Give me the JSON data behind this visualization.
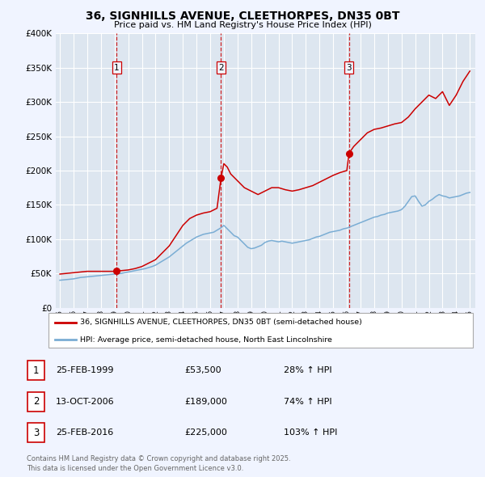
{
  "title": "36, SIGNHILLS AVENUE, CLEETHORPES, DN35 0BT",
  "subtitle": "Price paid vs. HM Land Registry's House Price Index (HPI)",
  "bg_color": "#f0f4ff",
  "plot_bg_color": "#dde6f0",
  "red_color": "#cc0000",
  "blue_color": "#7aadd4",
  "grid_color": "#ffffff",
  "dashed_color": "#cc0000",
  "ylim": [
    0,
    400000
  ],
  "yticks": [
    0,
    50000,
    100000,
    150000,
    200000,
    250000,
    300000,
    350000,
    400000
  ],
  "ytick_labels": [
    "£0",
    "£50K",
    "£100K",
    "£150K",
    "£200K",
    "£250K",
    "£300K",
    "£350K",
    "£400K"
  ],
  "sale_dates": [
    1999.15,
    2006.79,
    2016.15
  ],
  "sale_prices": [
    53500,
    189000,
    225000
  ],
  "sale_labels": [
    "1",
    "2",
    "3"
  ],
  "vline_dates": [
    1999.15,
    2006.79,
    2016.15
  ],
  "legend_red": "36, SIGNHILLS AVENUE, CLEETHORPES, DN35 0BT (semi-detached house)",
  "legend_blue": "HPI: Average price, semi-detached house, North East Lincolnshire",
  "table_entries": [
    {
      "num": "1",
      "date": "25-FEB-1999",
      "price": "£53,500",
      "hpi": "28% ↑ HPI"
    },
    {
      "num": "2",
      "date": "13-OCT-2006",
      "price": "£189,000",
      "hpi": "74% ↑ HPI"
    },
    {
      "num": "3",
      "date": "25-FEB-2016",
      "price": "£225,000",
      "hpi": "103% ↑ HPI"
    }
  ],
  "footnote": "Contains HM Land Registry data © Crown copyright and database right 2025.\nThis data is licensed under the Open Government Licence v3.0.",
  "hpi_years": [
    1995.0,
    1995.25,
    1995.5,
    1995.75,
    1996.0,
    1996.25,
    1996.5,
    1996.75,
    1997.0,
    1997.25,
    1997.5,
    1997.75,
    1998.0,
    1998.25,
    1998.5,
    1998.75,
    1999.0,
    1999.25,
    1999.5,
    1999.75,
    2000.0,
    2000.25,
    2000.5,
    2000.75,
    2001.0,
    2001.25,
    2001.5,
    2001.75,
    2002.0,
    2002.25,
    2002.5,
    2002.75,
    2003.0,
    2003.25,
    2003.5,
    2003.75,
    2004.0,
    2004.25,
    2004.5,
    2004.75,
    2005.0,
    2005.25,
    2005.5,
    2005.75,
    2006.0,
    2006.25,
    2006.5,
    2006.75,
    2007.0,
    2007.25,
    2007.5,
    2007.75,
    2008.0,
    2008.25,
    2008.5,
    2008.75,
    2009.0,
    2009.25,
    2009.5,
    2009.75,
    2010.0,
    2010.25,
    2010.5,
    2010.75,
    2011.0,
    2011.25,
    2011.5,
    2011.75,
    2012.0,
    2012.25,
    2012.5,
    2012.75,
    2013.0,
    2013.25,
    2013.5,
    2013.75,
    2014.0,
    2014.25,
    2014.5,
    2014.75,
    2015.0,
    2015.25,
    2015.5,
    2015.75,
    2016.0,
    2016.25,
    2016.5,
    2016.75,
    2017.0,
    2017.25,
    2017.5,
    2017.75,
    2018.0,
    2018.25,
    2018.5,
    2018.75,
    2019.0,
    2019.25,
    2019.5,
    2019.75,
    2020.0,
    2020.25,
    2020.5,
    2020.75,
    2021.0,
    2021.25,
    2021.5,
    2021.75,
    2022.0,
    2022.25,
    2022.5,
    2022.75,
    2023.0,
    2023.25,
    2023.5,
    2023.75,
    2024.0,
    2024.25,
    2024.5,
    2024.75,
    2025.0
  ],
  "hpi_values": [
    40000,
    40500,
    41000,
    41500,
    42000,
    43000,
    44000,
    44500,
    45000,
    45500,
    46000,
    46500,
    47000,
    47500,
    48000,
    48500,
    49000,
    49500,
    50000,
    51000,
    52000,
    53000,
    54000,
    55000,
    56000,
    57000,
    58500,
    60000,
    62000,
    65000,
    68000,
    71000,
    74000,
    78000,
    82000,
    86000,
    90000,
    94000,
    97000,
    100000,
    103000,
    105000,
    107000,
    108000,
    109000,
    110000,
    113000,
    116000,
    120000,
    115000,
    110000,
    105000,
    103000,
    98000,
    93000,
    88000,
    86000,
    87000,
    89000,
    91000,
    95000,
    97000,
    98000,
    97000,
    96000,
    97000,
    96000,
    95000,
    94000,
    95000,
    96000,
    97000,
    98000,
    99000,
    101000,
    103000,
    104000,
    106000,
    108000,
    110000,
    111000,
    112000,
    113000,
    115000,
    116000,
    118000,
    120000,
    122000,
    124000,
    126000,
    128000,
    130000,
    132000,
    133000,
    135000,
    136000,
    138000,
    139000,
    140000,
    141000,
    143000,
    148000,
    155000,
    162000,
    163000,
    155000,
    148000,
    150000,
    155000,
    158000,
    162000,
    165000,
    163000,
    162000,
    160000,
    161000,
    162000,
    163000,
    165000,
    167000,
    168000
  ],
  "red_years": [
    1995.0,
    1995.5,
    1996.0,
    1996.5,
    1997.0,
    1997.5,
    1998.0,
    1998.5,
    1999.0,
    1999.15,
    1999.5,
    2000.0,
    2000.5,
    2001.0,
    2001.5,
    2002.0,
    2002.5,
    2003.0,
    2003.5,
    2004.0,
    2004.5,
    2005.0,
    2005.5,
    2006.0,
    2006.5,
    2006.79,
    2007.0,
    2007.25,
    2007.5,
    2008.0,
    2008.5,
    2009.0,
    2009.5,
    2010.0,
    2010.5,
    2011.0,
    2011.5,
    2012.0,
    2012.5,
    2013.0,
    2013.5,
    2014.0,
    2014.5,
    2015.0,
    2015.5,
    2016.0,
    2016.15,
    2016.5,
    2017.0,
    2017.5,
    2018.0,
    2018.5,
    2019.0,
    2019.5,
    2020.0,
    2020.5,
    2021.0,
    2021.5,
    2022.0,
    2022.5,
    2023.0,
    2023.5,
    2024.0,
    2024.5,
    2025.0
  ],
  "red_values": [
    49000,
    50000,
    51000,
    52000,
    53000,
    53000,
    53000,
    53000,
    53000,
    53500,
    54000,
    55000,
    57000,
    60000,
    65000,
    70000,
    80000,
    90000,
    105000,
    120000,
    130000,
    135000,
    138000,
    140000,
    145000,
    189000,
    210000,
    205000,
    195000,
    185000,
    175000,
    170000,
    165000,
    170000,
    175000,
    175000,
    172000,
    170000,
    172000,
    175000,
    178000,
    183000,
    188000,
    193000,
    197000,
    200000,
    225000,
    235000,
    245000,
    255000,
    260000,
    262000,
    265000,
    268000,
    270000,
    278000,
    290000,
    300000,
    310000,
    305000,
    315000,
    295000,
    310000,
    330000,
    345000
  ]
}
